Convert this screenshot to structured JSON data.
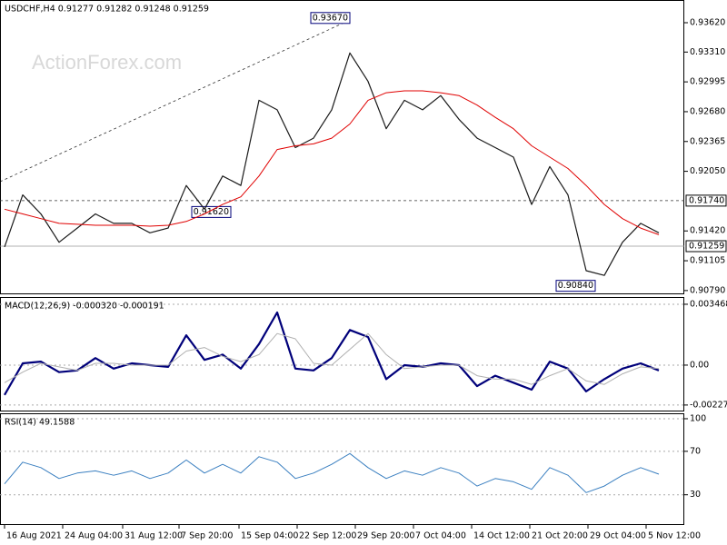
{
  "chart_data": [
    {
      "type": "line",
      "title": "USDCHF,H4  0.91277 0.91282 0.91248 0.91259",
      "watermark": "ActionForex.com",
      "xlim": [
        -0.25,
        37.4
      ],
      "ylim": [
        0.9076,
        0.9386
      ],
      "yticks": [
        {
          "value": 0.9362,
          "label": "0.93620"
        },
        {
          "value": 0.9331,
          "label": "0.93310"
        },
        {
          "value": 0.92995,
          "label": "0.92995"
        },
        {
          "value": 0.9268,
          "label": "0.92680"
        },
        {
          "value": 0.92365,
          "label": "0.92365"
        },
        {
          "value": 0.9205,
          "label": "0.92050"
        },
        {
          "value": 0.9142,
          "label": "0.91420"
        },
        {
          "value": 0.91105,
          "label": "0.91105"
        },
        {
          "value": 0.9079,
          "label": "0.90790"
        }
      ],
      "hlines": [
        {
          "value": 0.9174,
          "label": "0.91740"
        },
        {
          "value": 0.91259,
          "label": "0.91259"
        }
      ],
      "annotations": [
        {
          "x": 19,
          "value": 0.9367,
          "label": "0.93670"
        },
        {
          "x": 12.45,
          "value": 0.9162,
          "label": "0.91620"
        },
        {
          "x": 32.5,
          "value": 0.9084,
          "label": "0.90840"
        }
      ],
      "series": [
        {
          "name": "Price",
          "color": "#1a1a1a",
          "width": 1.2,
          "values": [
            0.9125,
            0.918,
            0.916,
            0.913,
            0.9145,
            0.916,
            0.915,
            0.915,
            0.914,
            0.9145,
            0.919,
            0.9165,
            0.92,
            0.919,
            0.928,
            0.927,
            0.923,
            0.924,
            0.927,
            0.933,
            0.93,
            0.925,
            0.928,
            0.927,
            0.9285,
            0.926,
            0.924,
            0.923,
            0.922,
            0.917,
            0.921,
            0.918,
            0.91,
            0.9095,
            0.913,
            0.915,
            0.914
          ]
        },
        {
          "name": "MA",
          "color": "#e00000",
          "width": 1,
          "values": [
            0.9165,
            0.916,
            0.9155,
            0.915,
            0.9149,
            0.9148,
            0.9148,
            0.9148,
            0.9147,
            0.9148,
            0.9152,
            0.916,
            0.917,
            0.9178,
            0.92,
            0.9228,
            0.9232,
            0.9234,
            0.924,
            0.9255,
            0.928,
            0.9288,
            0.929,
            0.929,
            0.9288,
            0.9285,
            0.9275,
            0.9262,
            0.925,
            0.9232,
            0.922,
            0.9208,
            0.919,
            0.917,
            0.9155,
            0.9145,
            0.9138
          ]
        }
      ]
    },
    {
      "type": "line",
      "title": "MACD(12,26,9) -0.000320 -0.000191",
      "xlim": [
        -0.25,
        37.4
      ],
      "ylim": [
        -0.00259,
        0.00388
      ],
      "grid": true,
      "yticks": [
        0.003468,
        {
          "value": 0,
          "label": "0.00"
        },
        -0.002274
      ],
      "series": [
        {
          "name": "MACD",
          "color": "#00007a",
          "width": 2.2,
          "values": [
            -0.0017,
            0.0001,
            0.0002,
            -0.0004,
            -0.0003,
            0.0004,
            -0.0002,
            0.0001,
            0.0,
            -0.0001,
            0.0017,
            0.0003,
            0.0006,
            -0.0002,
            0.0012,
            0.003,
            -0.0002,
            -0.0003,
            0.0004,
            0.002,
            0.0016,
            -0.0008,
            0.0,
            -0.0001,
            0.0001,
            0.0,
            -0.0012,
            -0.0006,
            -0.001,
            -0.0014,
            0.0002,
            -0.0002,
            -0.0015,
            -0.0008,
            -0.0002,
            0.0001,
            -0.0003
          ]
        },
        {
          "name": "Signal",
          "color": "#b0b0b0",
          "width": 1,
          "values": [
            -0.001,
            -0.0004,
            0.0001,
            -0.0001,
            -0.0003,
            0.0001,
            0.0001,
            0.0,
            0.0,
            0.0,
            0.0008,
            0.001,
            0.0005,
            0.0002,
            0.0006,
            0.0018,
            0.0015,
            0.0001,
            0.0,
            0.0009,
            0.0018,
            0.0006,
            -0.0002,
            -0.0001,
            0.0,
            0.0,
            -0.0006,
            -0.0008,
            -0.0008,
            -0.0011,
            -0.0006,
            -0.0002,
            -0.0009,
            -0.0011,
            -0.0005,
            -0.0001,
            -0.0002
          ]
        }
      ]
    },
    {
      "type": "line",
      "title": "RSI(14) 49.1588",
      "xlim": [
        -0.25,
        37.4
      ],
      "ylim": [
        3,
        105
      ],
      "grid": true,
      "yticks": [
        100,
        70,
        30
      ],
      "xticks": [
        {
          "value": 0,
          "label": "16 Aug 2021"
        },
        {
          "value": 3.2,
          "label": "24 Aug 04:00"
        },
        {
          "value": 6.5,
          "label": "31 Aug 12:00"
        },
        {
          "value": 9.6,
          "label": "7 Sep 20:00"
        },
        {
          "value": 12.9,
          "label": "15 Sep 04:00"
        },
        {
          "value": 16.1,
          "label": "22 Sep 12:00"
        },
        {
          "value": 19.3,
          "label": "29 Sep 20:00"
        },
        {
          "value": 22.5,
          "label": "7 Oct 04:00"
        },
        {
          "value": 25.7,
          "label": "14 Oct 12:00"
        },
        {
          "value": 28.9,
          "label": "21 Oct 20:00"
        },
        {
          "value": 32.1,
          "label": "29 Oct 04:00"
        },
        {
          "value": 35.3,
          "label": "5 Nov 12:00"
        }
      ],
      "series": [
        {
          "name": "RSI",
          "color": "#3a7fc0",
          "width": 1,
          "values": [
            40,
            60,
            55,
            45,
            50,
            52,
            48,
            52,
            45,
            50,
            62,
            50,
            58,
            50,
            65,
            60,
            45,
            50,
            58,
            68,
            55,
            45,
            52,
            48,
            55,
            50,
            38,
            45,
            42,
            35,
            55,
            48,
            32,
            38,
            48,
            55,
            49
          ]
        }
      ]
    }
  ]
}
